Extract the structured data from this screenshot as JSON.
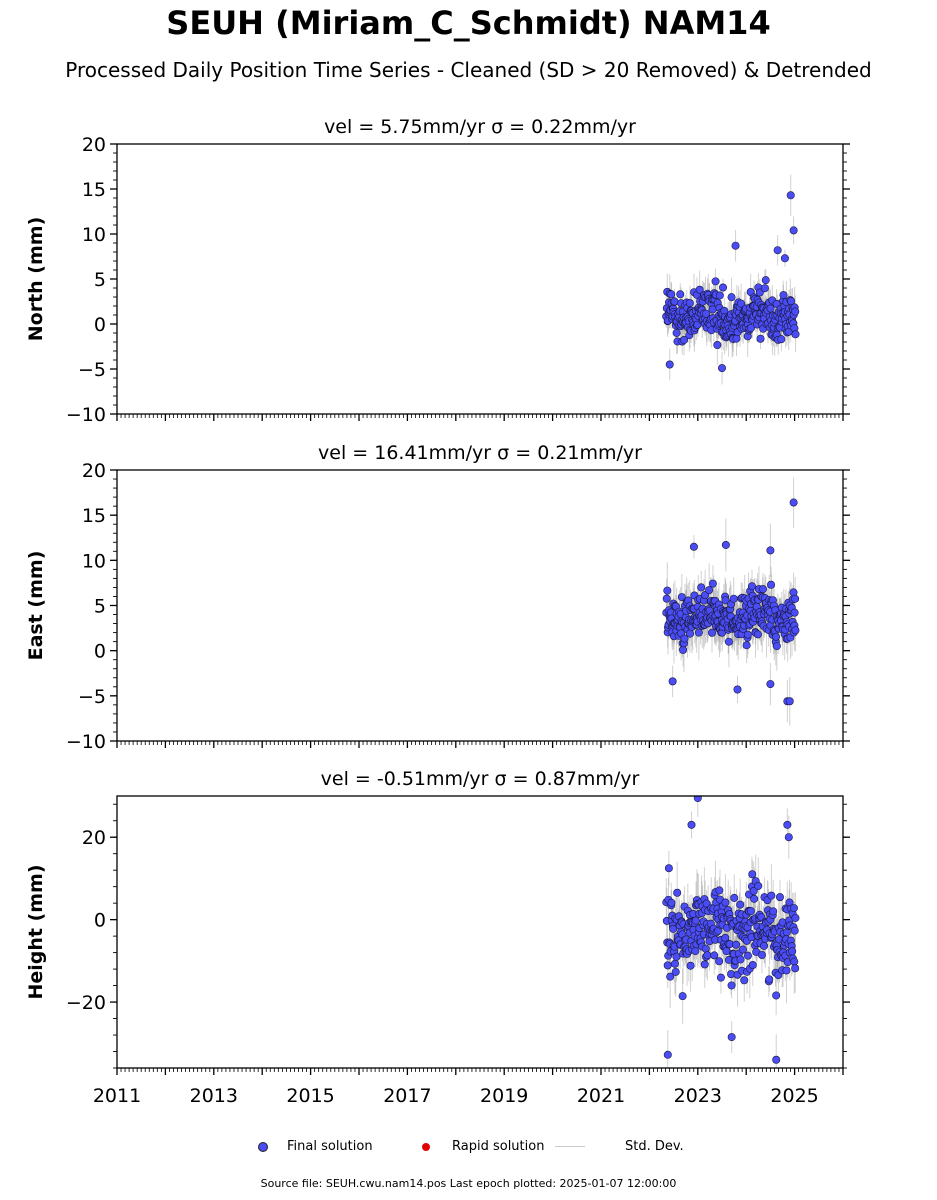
{
  "title": "SEUH (Miriam_C_Schmidt) NAM14",
  "subtitle": "Processed Daily Position Time Series - Cleaned (SD > 20 Removed) & Detrended",
  "legend": {
    "final_label": "Final solution",
    "rapid_label": "Rapid solution",
    "std_label": "Std. Dev."
  },
  "footer": "Source file: SEUH.cwu.nam14.pos  Last epoch plotted: 2025-01-07 12:00:00",
  "colors": {
    "final_solution": "#4a4cf5",
    "rapid_solution": "#e00000",
    "std_dev": "#999999"
  },
  "chart_data": [
    {
      "type": "scatter",
      "panel": "north",
      "title": "vel = 5.75mm/yr   σ = 0.22mm/yr",
      "xlabel": "",
      "ylabel": "North (mm)",
      "xlim": [
        2011.0,
        2026.0
      ],
      "ylim": [
        -10,
        20
      ],
      "xticks": [
        "2011",
        "2013",
        "2015",
        "2017",
        "2019",
        "2021",
        "2023",
        "2025"
      ],
      "yticks": [
        -10,
        -5,
        0,
        5,
        10,
        15,
        20
      ],
      "ytick_labels": [
        "−10",
        "−5",
        "0",
        "5",
        "10",
        "15",
        "20"
      ],
      "show_x_labels": false,
      "data_span": [
        2022.35,
        2025.02
      ],
      "center": 1.0,
      "spread": 1.9,
      "typical_std": 1.5,
      "outliers": [
        [
          2024.92,
          14.3
        ],
        [
          2024.98,
          10.4
        ],
        [
          2024.65,
          8.2
        ],
        [
          2023.78,
          8.7
        ],
        [
          2024.8,
          7.3
        ],
        [
          2022.42,
          -4.5
        ],
        [
          2023.5,
          -4.9
        ]
      ],
      "series": [
        {
          "name": "Final solution"
        }
      ]
    },
    {
      "type": "scatter",
      "panel": "east",
      "title": "vel = 16.41mm/yr   σ = 0.21mm/yr",
      "xlabel": "",
      "ylabel": "East (mm)",
      "xlim": [
        2011.0,
        2026.0
      ],
      "ylim": [
        -10,
        20
      ],
      "xticks": [
        "2011",
        "2013",
        "2015",
        "2017",
        "2019",
        "2021",
        "2023",
        "2025"
      ],
      "yticks": [
        -10,
        -5,
        0,
        5,
        10,
        15,
        20
      ],
      "ytick_labels": [
        "−10",
        "−5",
        "0",
        "5",
        "10",
        "15",
        "20"
      ],
      "show_x_labels": false,
      "data_span": [
        2022.35,
        2025.02
      ],
      "center": 3.8,
      "spread": 2.0,
      "typical_std": 2.0,
      "outliers": [
        [
          2024.98,
          16.4
        ],
        [
          2023.58,
          11.7
        ],
        [
          2022.92,
          11.5
        ],
        [
          2024.5,
          11.1
        ],
        [
          2022.48,
          -3.4
        ],
        [
          2023.82,
          -4.3
        ],
        [
          2024.5,
          -3.7
        ],
        [
          2024.85,
          -5.6
        ],
        [
          2024.9,
          -5.6
        ]
      ],
      "series": [
        {
          "name": "Final solution"
        }
      ]
    },
    {
      "type": "scatter",
      "panel": "height",
      "title": "vel = -0.51mm/yr   σ = 0.87mm/yr",
      "xlabel": "",
      "ylabel": "Height (mm)",
      "xlim": [
        2011.0,
        2026.0
      ],
      "ylim": [
        -36,
        30
      ],
      "xticks": [
        "2011",
        "2013",
        "2015",
        "2017",
        "2019",
        "2021",
        "2023",
        "2025"
      ],
      "yticks": [
        -20,
        0,
        20
      ],
      "ytick_labels": [
        "−20",
        "0",
        "20"
      ],
      "show_x_labels": true,
      "data_span": [
        2022.35,
        2025.02
      ],
      "center": -2.5,
      "spread": 7.0,
      "typical_std": 5.0,
      "outliers": [
        [
          2023.0,
          29.5
        ],
        [
          2022.87,
          23.0
        ],
        [
          2024.85,
          23.0
        ],
        [
          2024.88,
          20.0
        ],
        [
          2022.38,
          -32.8
        ],
        [
          2023.7,
          -28.5
        ],
        [
          2024.62,
          -34.0
        ]
      ],
      "series": [
        {
          "name": "Final solution"
        }
      ]
    }
  ]
}
